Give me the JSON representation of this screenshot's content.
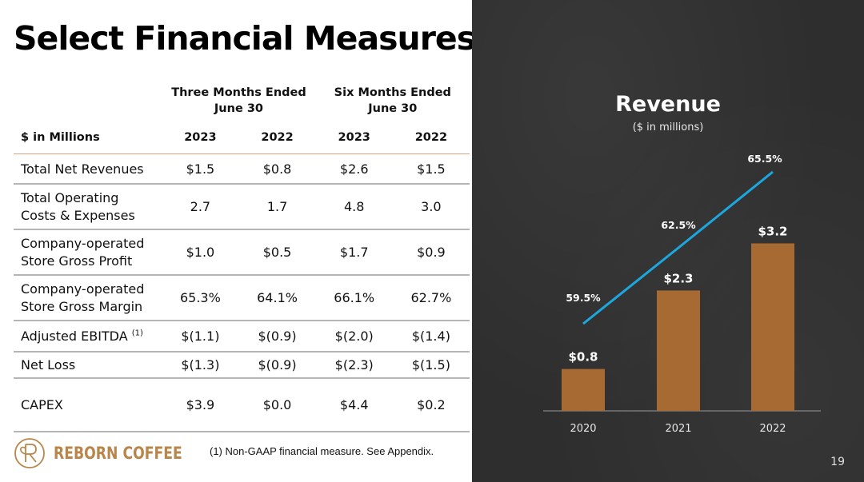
{
  "page": {
    "title": "Select Financial Measures",
    "page_number": "19",
    "footnote": "(1)  Non-GAAP financial measure. See Appendix.",
    "brand": "REBORN COFFEE"
  },
  "table": {
    "units_label": "$ in Millions",
    "groups": [
      {
        "line1": "Three Months Ended",
        "line2": "June 30"
      },
      {
        "line1": "Six Months Ended",
        "line2": "June 30"
      }
    ],
    "years": [
      "2023",
      "2022",
      "2023",
      "2022"
    ],
    "rows": [
      {
        "label1": "Total Net Revenues",
        "label2": "",
        "values": [
          "$1.5",
          "$0.8",
          "$2.6",
          "$1.5"
        ]
      },
      {
        "label1": "Total Operating",
        "label2": "Costs & Expenses",
        "values": [
          "2.7",
          "1.7",
          "4.8",
          "3.0"
        ]
      },
      {
        "label1": "Company-operated",
        "label2": "Store Gross Profit",
        "values": [
          "$1.0",
          "$0.5",
          "$1.7",
          "$0.9"
        ]
      },
      {
        "label1": "Company-operated",
        "label2": "Store Gross Margin",
        "values": [
          "65.3%",
          "64.1%",
          "66.1%",
          "62.7%"
        ]
      },
      {
        "label1": "Adjusted EBITDA",
        "label2": "",
        "sup": "(1)",
        "values": [
          "$(1.1)",
          "$(0.9)",
          "$(2.0)",
          "$(1.4)"
        ]
      },
      {
        "label1": "Net Loss",
        "label2": "",
        "values": [
          "$(1.3)",
          "$(0.9)",
          "$(2.3)",
          "$(1.5)"
        ]
      },
      {
        "label1": "CAPEX",
        "label2": "",
        "values": [
          "$3.9",
          "$0.0",
          "$4.4",
          "$0.2"
        ]
      }
    ]
  },
  "chart_data": {
    "type": "bar",
    "title": "Revenue",
    "subtitle": "($ in millions)",
    "categories": [
      "2020",
      "2021",
      "2022"
    ],
    "series": [
      {
        "name": "Revenue",
        "kind": "bar",
        "values": [
          0.8,
          2.3,
          3.2
        ],
        "labels": [
          "$0.8",
          "$2.3",
          "$3.2"
        ],
        "color": "#a86a33"
      },
      {
        "name": "Store Gross Margin",
        "kind": "line",
        "values": [
          59.5,
          62.5,
          65.5
        ],
        "labels": [
          "59.5%",
          "62.5%",
          "65.5%"
        ],
        "color": "#1ba8e0"
      }
    ],
    "xlabel": "",
    "ylabel": "",
    "ylim": [
      0,
      4.2
    ],
    "grid": false,
    "legend": "none"
  },
  "colors": {
    "brand": "#b8864a",
    "bar": "#a86a33",
    "line": "#1ba8e0",
    "panel_bg": "#2e2e2e",
    "header_rule": "#d8a57e"
  }
}
